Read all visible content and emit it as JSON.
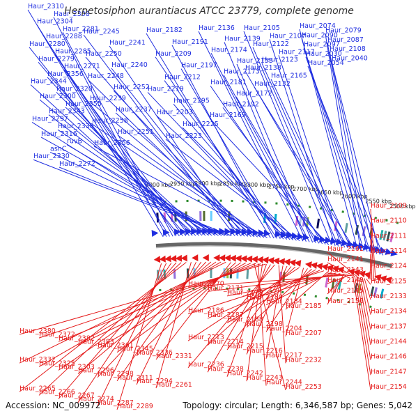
{
  "title": "Herpetosiphon aurantiacus ATCC 23779, complete genome",
  "accession": "Accession: NC_009972",
  "topology": "Topology: circular; Length: 6,346,587 bp; Genes: 5,042",
  "colors": {
    "forward": "#1f2ee0",
    "reverse": "#e51a1a",
    "backbone": "#666666",
    "tick": "#2e8b2e"
  },
  "scale_labels": [
    "2500 kbp",
    "2550 kbp",
    "2600 kbp",
    "2650 kbp",
    "2700 kbp",
    "2750 kbp",
    "2800 kbp",
    "2850 kbp",
    "2900 kbp",
    "2950 kbp",
    "3000 kbp"
  ],
  "forward_genes": [
    "Haur_2310",
    "Haur_2308",
    "Haur_2304",
    "Haur_2281",
    "Haur_2288",
    "Haur_2280",
    "Haur_2285",
    "Haur_2279",
    "Haur_2271",
    "Haur_2356",
    "Haur_2344",
    "Haur_2320",
    "Haur_2300",
    "Haur_2355",
    "Haur_2343",
    "Haur_2297",
    "Haur_2339",
    "Haur_2316",
    "ruvB",
    "asnC",
    "Haur_2330",
    "Haur_2272",
    "Haur_2245",
    "Haur_2241",
    "Haur_2250",
    "Haur_2240",
    "Haur_2248",
    "Haur_2252",
    "Haur_2239",
    "Haur_2237",
    "Haur_2258",
    "Haur_2251",
    "Haur_2256",
    "Haur_2182",
    "Haur_2191",
    "Haur_2209",
    "Haur_2197",
    "Haur_2212",
    "Haur_2219",
    "Haur_2195",
    "Haur_2203",
    "Haur_2225",
    "Haur_2223",
    "Haur_2136",
    "Haur_2139",
    "Haur_2174",
    "Haur_2153",
    "Haur_2173",
    "Haur_2181",
    "Haur_2172",
    "Haur_2192",
    "Haur_2169",
    "Haur_2105",
    "Haur_2107",
    "Haur_2122",
    "Haur_2117",
    "Haur_2123",
    "Haur_2138",
    "Haur_2165",
    "Haur_2132",
    "Haur_2074",
    "Haur_2079",
    "Haur_2090",
    "Haur_2087",
    "Haur_2097",
    "Haur_2108",
    "Haur_2030",
    "Haur_2040",
    "Haur_2054"
  ],
  "reverse_genes_right": [
    "Haur_2109",
    "Haur_2110",
    "Haur_2111",
    "Haur_2114",
    "Haur_2124",
    "Haur_2125",
    "Haur_2133",
    "Haur_2134",
    "Haur_2137",
    "Haur_2144",
    "Haur_2146",
    "Haur_2147",
    "Haur_2154"
  ],
  "reverse_genes_inner": [
    "Haur_2161",
    "Haur_2141",
    "Haur_2143",
    "Haur_2148",
    "Haur_2145",
    "Haur_2156"
  ],
  "reverse_genes_mid": [
    "Haur_2170",
    "Haur_2171",
    "Haur_2179",
    "Haur_2180",
    "Haur_2184",
    "Haur_2185",
    "Haur_2186",
    "Haur_2187",
    "Haur_2188",
    "Haur_2198",
    "Haur_2204",
    "Haur_2207",
    "Haur_2213",
    "Haur_2214",
    "Haur_2215",
    "Haur_2216",
    "Haur_2217",
    "Haur_2232",
    "Haur_2236",
    "Haur_2238",
    "Haur_2242",
    "Haur_2243",
    "Haur_2244",
    "Haur_2253"
  ],
  "reverse_genes_left": [
    "Haur_2380",
    "Haur_2372",
    "Haur_2382",
    "Haur_2383",
    "Haur_2361",
    "Haur_2345",
    "Haur_2336",
    "Haur_2331",
    "Haur_2332",
    "Haur_2325",
    "Haur_2303",
    "Haur_2296",
    "Haur_2298",
    "Haur_2311",
    "Haur_2294",
    "Haur_2261",
    "Haur_2265",
    "Haur_2266",
    "Haur_2267",
    "Haur_2274",
    "Haur_2287",
    "Haur_2289"
  ]
}
